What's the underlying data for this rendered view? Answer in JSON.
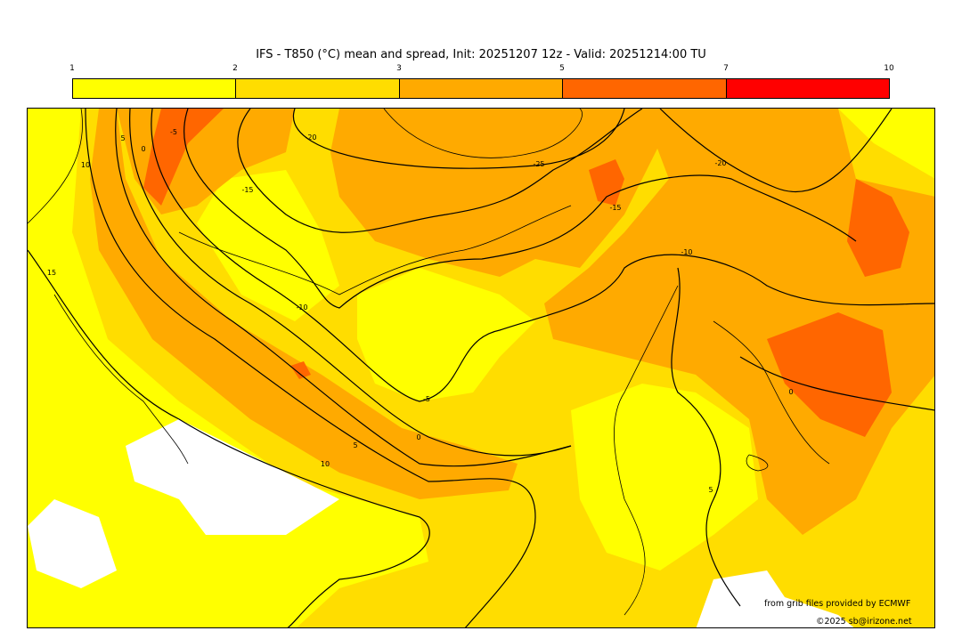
{
  "title": "IFS - T850 (°C) mean and spread, Init: 20251207 12z - Valid: 20251214:00 TU",
  "legend": {
    "ticks": [
      "1",
      "2",
      "3",
      "5",
      "7",
      "10"
    ],
    "colors": [
      "#ffff00",
      "#ffdd00",
      "#ffaa00",
      "#ff6600",
      "#ff0000"
    ]
  },
  "contour_labels": [
    "10",
    "5",
    "0",
    "-5",
    "-15",
    "-20",
    "-25",
    "-20",
    "-15",
    "-10",
    "-10",
    "-5",
    "0",
    "5",
    "10",
    "15",
    "0",
    "5"
  ],
  "credits": {
    "source": "from grib files provided by ECMWF",
    "copyright": "©2025 sb@irizone.net"
  }
}
